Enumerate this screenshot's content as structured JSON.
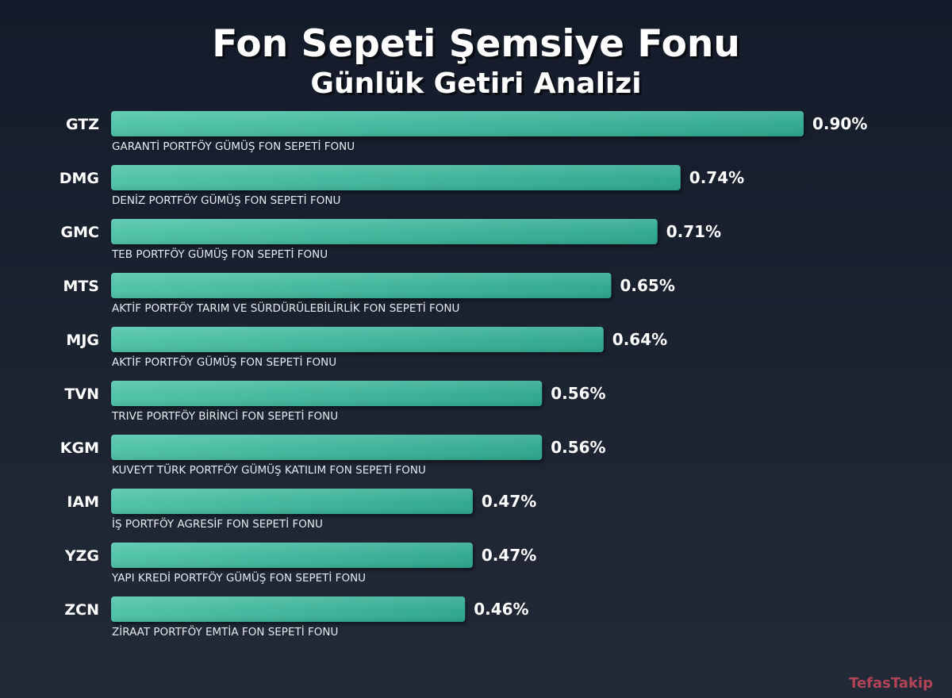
{
  "chart_data": {
    "type": "bar",
    "orientation": "horizontal",
    "title": "Fon Sepeti Şemsiye Fonu",
    "subtitle": "Günlük Getiri Analizi",
    "categories": [
      "GTZ",
      "DMG",
      "GMC",
      "MTS",
      "MJG",
      "TVN",
      "KGM",
      "IAM",
      "YZG",
      "ZCN"
    ],
    "fund_names": [
      "GARANTİ PORTFÖY GÜMÜŞ FON SEPETİ FONU",
      "DENİZ PORTFÖY GÜMÜŞ FON SEPETİ FONU",
      "TEB PORTFÖY GÜMÜŞ FON SEPETİ FONU",
      "AKTİF PORTFÖY TARIM VE SÜRDÜRÜLEBİLİRLİK FON SEPETİ FONU",
      "AKTİF PORTFÖY GÜMÜŞ FON SEPETİ FONU",
      "TRIVE PORTFÖY BİRİNCİ FON SEPETİ FONU",
      "KUVEYT TÜRK PORTFÖY GÜMÜŞ KATILIM FON SEPETİ FONU",
      "İŞ PORTFÖY AGRESİF FON SEPETİ FONU",
      "YAPI KREDİ PORTFÖY GÜMÜŞ FON SEPETİ FONU",
      "ZİRAAT PORTFÖY EMTİA FON SEPETİ FONU"
    ],
    "values": [
      0.9,
      0.74,
      0.71,
      0.65,
      0.64,
      0.56,
      0.56,
      0.47,
      0.47,
      0.46
    ],
    "value_labels": [
      "0.90%",
      "0.74%",
      "0.71%",
      "0.65%",
      "0.64%",
      "0.56%",
      "0.56%",
      "0.47%",
      "0.47%",
      "0.46%"
    ],
    "xlim": [
      0,
      0.9
    ],
    "grid": false,
    "bar_color_start": "#4fc3a8",
    "bar_color_end": "#2ea88e"
  },
  "brand": "TefasTakip",
  "colors": {
    "background": "#1a2130",
    "text": "#ffffff",
    "brand": "#c0485a"
  }
}
